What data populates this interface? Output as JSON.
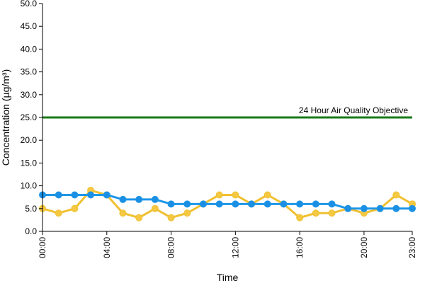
{
  "chart_data": {
    "type": "line",
    "title": "",
    "xlabel": "Time",
    "ylabel": "Concentration (µg/m³)",
    "ylim": [
      0,
      50
    ],
    "y_ticks": [
      0,
      5,
      10,
      15,
      20,
      25,
      30,
      35,
      40,
      45,
      50
    ],
    "y_tick_labels": [
      "0.0",
      "5.0",
      "10.0",
      "15.0",
      "20.0",
      "25.0",
      "30.0",
      "35.0",
      "40.0",
      "45.0",
      "50.0"
    ],
    "x": [
      "00:00",
      "01:00",
      "02:00",
      "03:00",
      "04:00",
      "05:00",
      "06:00",
      "07:00",
      "08:00",
      "09:00",
      "10:00",
      "11:00",
      "12:00",
      "13:00",
      "14:00",
      "15:00",
      "16:00",
      "17:00",
      "18:00",
      "19:00",
      "20:00",
      "21:00",
      "22:00",
      "23:00"
    ],
    "x_tick_labels": [
      "00:00",
      "04:00",
      "08:00",
      "12:00",
      "16:00",
      "20:00",
      "23:00"
    ],
    "grid": false,
    "legend": "none",
    "series": [
      {
        "color": "#f0c030",
        "marker_color": "#f5c842",
        "values": [
          5,
          4,
          5,
          9,
          8,
          4,
          3,
          5,
          3,
          4,
          6,
          8,
          8,
          6,
          8,
          6,
          3,
          4,
          4,
          5,
          4,
          5,
          8,
          6
        ]
      },
      {
        "color": "#1e96e8",
        "marker_color": "#1a8fe3",
        "values": [
          8,
          8,
          8,
          8,
          8,
          7,
          7,
          7,
          6,
          6,
          6,
          6,
          6,
          6,
          6,
          6,
          6,
          6,
          6,
          5,
          5,
          5,
          5,
          5
        ]
      }
    ],
    "reference_line": {
      "label": "24 Hour Air Quality Objective",
      "value": 25,
      "color": "#1a7a1a"
    }
  }
}
